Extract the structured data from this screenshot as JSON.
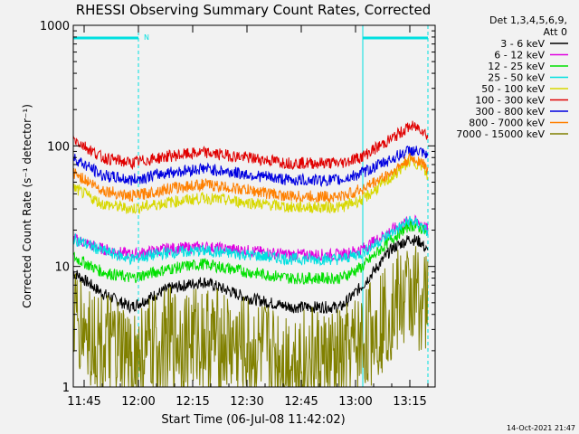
{
  "chart_data": {
    "type": "line",
    "title": "RHESSI Observing Summary Count Rates, Corrected",
    "xlabel": "Start Time (06-Jul-08 11:42:02)",
    "ylabel": "Corrected Count Rate (s⁻¹ detector⁻¹)",
    "x_start": "11:42",
    "x_end": "13:22",
    "y_scale": "log",
    "ylim": [
      1,
      1000
    ],
    "x_tick_labels": [
      "11:45",
      "12:00",
      "12:15",
      "12:30",
      "12:45",
      "13:00",
      "13:15"
    ],
    "x_ticks_min": [
      705,
      720,
      735,
      750,
      765,
      780,
      795
    ],
    "y_tick_labels": [
      "1",
      "10",
      "100",
      "1000"
    ],
    "y_ticks": [
      1,
      10,
      100,
      1000
    ],
    "legend_header": [
      "Det 1,3,4,5,6,9,",
      "Att 0"
    ],
    "legend_position": "right",
    "timestamp": "14-Oct-2021 21:47",
    "top_bar_label": "N",
    "series": [
      {
        "name": "3 - 6 keV",
        "color": "#000000",
        "x": [
          702,
          710,
          718,
          728,
          738,
          750,
          762,
          776,
          782,
          790,
          795,
          798,
          800
        ],
        "y": [
          9,
          6,
          4.6,
          6.5,
          7.5,
          5.5,
          4.6,
          4.6,
          7,
          14,
          17,
          16,
          13
        ]
      },
      {
        "name": "6 - 12 keV",
        "color": "#e000e0",
        "x": [
          702,
          710,
          718,
          728,
          738,
          750,
          762,
          776,
          782,
          790,
          795,
          798,
          800
        ],
        "y": [
          17,
          14,
          12.5,
          14,
          14.5,
          13.5,
          12.5,
          12.5,
          14,
          20,
          24,
          23,
          20
        ]
      },
      {
        "name": "12 - 25 keV",
        "color": "#00e000",
        "x": [
          702,
          710,
          718,
          728,
          738,
          750,
          762,
          776,
          782,
          790,
          795,
          798,
          800
        ],
        "y": [
          12,
          9,
          8,
          9.5,
          10.5,
          9,
          8,
          8,
          10,
          17,
          22,
          21,
          18
        ]
      },
      {
        "name": "25 - 50 keV",
        "color": "#00e0e0",
        "x": [
          702,
          710,
          718,
          728,
          738,
          750,
          762,
          776,
          782,
          790,
          795,
          798,
          800
        ],
        "y": [
          17,
          13.5,
          11.5,
          13,
          13.5,
          12.5,
          11.5,
          11.5,
          13,
          19,
          24,
          22,
          19
        ]
      },
      {
        "name": "50 - 100 keV",
        "color": "#d8d800",
        "x": [
          702,
          710,
          718,
          728,
          738,
          750,
          762,
          776,
          782,
          790,
          795,
          798,
          800
        ],
        "y": [
          45,
          33,
          30,
          34,
          37,
          34,
          31,
          31,
          36,
          55,
          75,
          70,
          55
        ]
      },
      {
        "name": "100 - 300 keV",
        "color": "#e00000",
        "x": [
          702,
          710,
          718,
          728,
          738,
          750,
          762,
          776,
          782,
          790,
          795,
          798,
          800
        ],
        "y": [
          115,
          80,
          72,
          82,
          88,
          80,
          72,
          72,
          82,
          115,
          145,
          140,
          120
        ]
      },
      {
        "name": "300 - 800 keV",
        "color": "#0000e0",
        "x": [
          702,
          710,
          718,
          728,
          738,
          750,
          762,
          776,
          782,
          790,
          795,
          798,
          800
        ],
        "y": [
          80,
          57,
          52,
          60,
          65,
          58,
          52,
          52,
          60,
          78,
          92,
          88,
          80
        ]
      },
      {
        "name": "800 - 7000 keV",
        "color": "#ff8000",
        "x": [
          702,
          710,
          718,
          728,
          738,
          750,
          762,
          776,
          782,
          790,
          795,
          798,
          800
        ],
        "y": [
          60,
          43,
          38,
          44,
          48,
          43,
          38,
          38,
          44,
          60,
          78,
          75,
          63
        ]
      },
      {
        "name": "7000 - 15000 keV",
        "color": "#808000",
        "x": [
          702,
          710,
          718,
          728,
          738,
          750,
          762,
          776,
          782,
          790,
          795,
          798,
          800
        ],
        "y": [
          3.5,
          2.2,
          1.6,
          2.4,
          2.6,
          2.0,
          1.7,
          1.6,
          2.4,
          4.5,
          6.0,
          5.5,
          4.8
        ]
      }
    ],
    "attenuator_bars": [
      {
        "x_start": 702,
        "x_end": 720
      },
      {
        "x_start": 782,
        "x_end": 800
      }
    ],
    "vertical_markers_dashed": [
      720,
      800
    ],
    "vertical_markers_solid": [
      702,
      782
    ]
  }
}
